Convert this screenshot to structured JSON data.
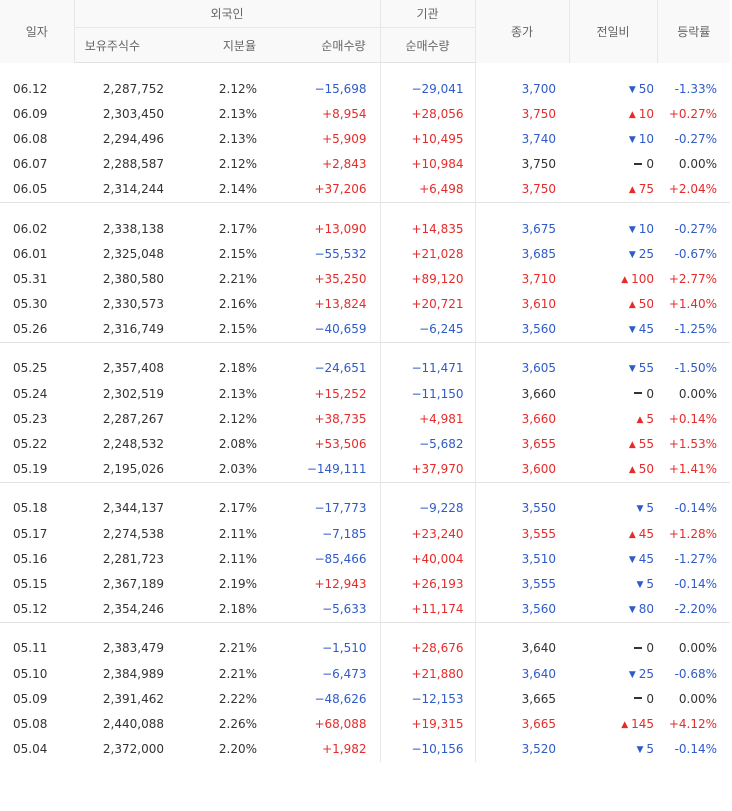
{
  "header": {
    "date": "일자",
    "foreign": "외국인",
    "institution": "기관",
    "close": "종가",
    "change": "전일비",
    "rate": "등락률",
    "holdings": "보유주식수",
    "ratio": "지분율",
    "foreign_net": "순매수량",
    "inst_net": "순매수량"
  },
  "colors": {
    "up": "#e52b2b",
    "down": "#2f5bc8",
    "flat": "#333333"
  },
  "icons": {
    "up": "up-triangle-icon",
    "down": "down-triangle-icon",
    "flat": "dash-icon"
  },
  "groups": [
    [
      {
        "date": "06.12",
        "hold": "2,287,752",
        "ratio": "2.12%",
        "fnet": "−15,698",
        "inet": "−29,041",
        "close": "3,700",
        "dir": "down",
        "chg": "50",
        "rate": "-1.33%"
      },
      {
        "date": "06.09",
        "hold": "2,303,450",
        "ratio": "2.13%",
        "fnet": "+8,954",
        "inet": "+28,056",
        "close": "3,750",
        "dir": "up",
        "chg": "10",
        "rate": "+0.27%"
      },
      {
        "date": "06.08",
        "hold": "2,294,496",
        "ratio": "2.13%",
        "fnet": "+5,909",
        "inet": "+10,495",
        "close": "3,740",
        "dir": "down",
        "chg": "10",
        "rate": "-0.27%"
      },
      {
        "date": "06.07",
        "hold": "2,288,587",
        "ratio": "2.12%",
        "fnet": "+2,843",
        "inet": "+10,984",
        "close": "3,750",
        "dir": "flat",
        "chg": "0",
        "rate": "0.00%"
      },
      {
        "date": "06.05",
        "hold": "2,314,244",
        "ratio": "2.14%",
        "fnet": "+37,206",
        "inet": "+6,498",
        "close": "3,750",
        "dir": "up",
        "chg": "75",
        "rate": "+2.04%"
      }
    ],
    [
      {
        "date": "06.02",
        "hold": "2,338,138",
        "ratio": "2.17%",
        "fnet": "+13,090",
        "inet": "+14,835",
        "close": "3,675",
        "dir": "down",
        "chg": "10",
        "rate": "-0.27%"
      },
      {
        "date": "06.01",
        "hold": "2,325,048",
        "ratio": "2.15%",
        "fnet": "−55,532",
        "inet": "+21,028",
        "close": "3,685",
        "dir": "down",
        "chg": "25",
        "rate": "-0.67%"
      },
      {
        "date": "05.31",
        "hold": "2,380,580",
        "ratio": "2.21%",
        "fnet": "+35,250",
        "inet": "+89,120",
        "close": "3,710",
        "dir": "up",
        "chg": "100",
        "rate": "+2.77%"
      },
      {
        "date": "05.30",
        "hold": "2,330,573",
        "ratio": "2.16%",
        "fnet": "+13,824",
        "inet": "+20,721",
        "close": "3,610",
        "dir": "up",
        "chg": "50",
        "rate": "+1.40%"
      },
      {
        "date": "05.26",
        "hold": "2,316,749",
        "ratio": "2.15%",
        "fnet": "−40,659",
        "inet": "−6,245",
        "close": "3,560",
        "dir": "down",
        "chg": "45",
        "rate": "-1.25%"
      }
    ],
    [
      {
        "date": "05.25",
        "hold": "2,357,408",
        "ratio": "2.18%",
        "fnet": "−24,651",
        "inet": "−11,471",
        "close": "3,605",
        "dir": "down",
        "chg": "55",
        "rate": "-1.50%"
      },
      {
        "date": "05.24",
        "hold": "2,302,519",
        "ratio": "2.13%",
        "fnet": "+15,252",
        "inet": "−11,150",
        "close": "3,660",
        "dir": "flat",
        "chg": "0",
        "rate": "0.00%"
      },
      {
        "date": "05.23",
        "hold": "2,287,267",
        "ratio": "2.12%",
        "fnet": "+38,735",
        "inet": "+4,981",
        "close": "3,660",
        "dir": "up",
        "chg": "5",
        "rate": "+0.14%"
      },
      {
        "date": "05.22",
        "hold": "2,248,532",
        "ratio": "2.08%",
        "fnet": "+53,506",
        "inet": "−5,682",
        "close": "3,655",
        "dir": "up",
        "chg": "55",
        "rate": "+1.53%"
      },
      {
        "date": "05.19",
        "hold": "2,195,026",
        "ratio": "2.03%",
        "fnet": "−149,111",
        "inet": "+37,970",
        "close": "3,600",
        "dir": "up",
        "chg": "50",
        "rate": "+1.41%"
      }
    ],
    [
      {
        "date": "05.18",
        "hold": "2,344,137",
        "ratio": "2.17%",
        "fnet": "−17,773",
        "inet": "−9,228",
        "close": "3,550",
        "dir": "down",
        "chg": "5",
        "rate": "-0.14%"
      },
      {
        "date": "05.17",
        "hold": "2,274,538",
        "ratio": "2.11%",
        "fnet": "−7,185",
        "inet": "+23,240",
        "close": "3,555",
        "dir": "up",
        "chg": "45",
        "rate": "+1.28%"
      },
      {
        "date": "05.16",
        "hold": "2,281,723",
        "ratio": "2.11%",
        "fnet": "−85,466",
        "inet": "+40,004",
        "close": "3,510",
        "dir": "down",
        "chg": "45",
        "rate": "-1.27%"
      },
      {
        "date": "05.15",
        "hold": "2,367,189",
        "ratio": "2.19%",
        "fnet": "+12,943",
        "inet": "+26,193",
        "close": "3,555",
        "dir": "down",
        "chg": "5",
        "rate": "-0.14%"
      },
      {
        "date": "05.12",
        "hold": "2,354,246",
        "ratio": "2.18%",
        "fnet": "−5,633",
        "inet": "+11,174",
        "close": "3,560",
        "dir": "down",
        "chg": "80",
        "rate": "-2.20%"
      }
    ],
    [
      {
        "date": "05.11",
        "hold": "2,383,479",
        "ratio": "2.21%",
        "fnet": "−1,510",
        "inet": "+28,676",
        "close": "3,640",
        "dir": "flat",
        "chg": "0",
        "rate": "0.00%"
      },
      {
        "date": "05.10",
        "hold": "2,384,989",
        "ratio": "2.21%",
        "fnet": "−6,473",
        "inet": "+21,880",
        "close": "3,640",
        "dir": "down",
        "chg": "25",
        "rate": "-0.68%"
      },
      {
        "date": "05.09",
        "hold": "2,391,462",
        "ratio": "2.22%",
        "fnet": "−48,626",
        "inet": "−12,153",
        "close": "3,665",
        "dir": "flat",
        "chg": "0",
        "rate": "0.00%"
      },
      {
        "date": "05.08",
        "hold": "2,440,088",
        "ratio": "2.26%",
        "fnet": "+68,088",
        "inet": "+19,315",
        "close": "3,665",
        "dir": "up",
        "chg": "145",
        "rate": "+4.12%"
      },
      {
        "date": "05.04",
        "hold": "2,372,000",
        "ratio": "2.20%",
        "fnet": "+1,982",
        "inet": "−10,156",
        "close": "3,520",
        "dir": "down",
        "chg": "5",
        "rate": "-0.14%"
      }
    ]
  ]
}
